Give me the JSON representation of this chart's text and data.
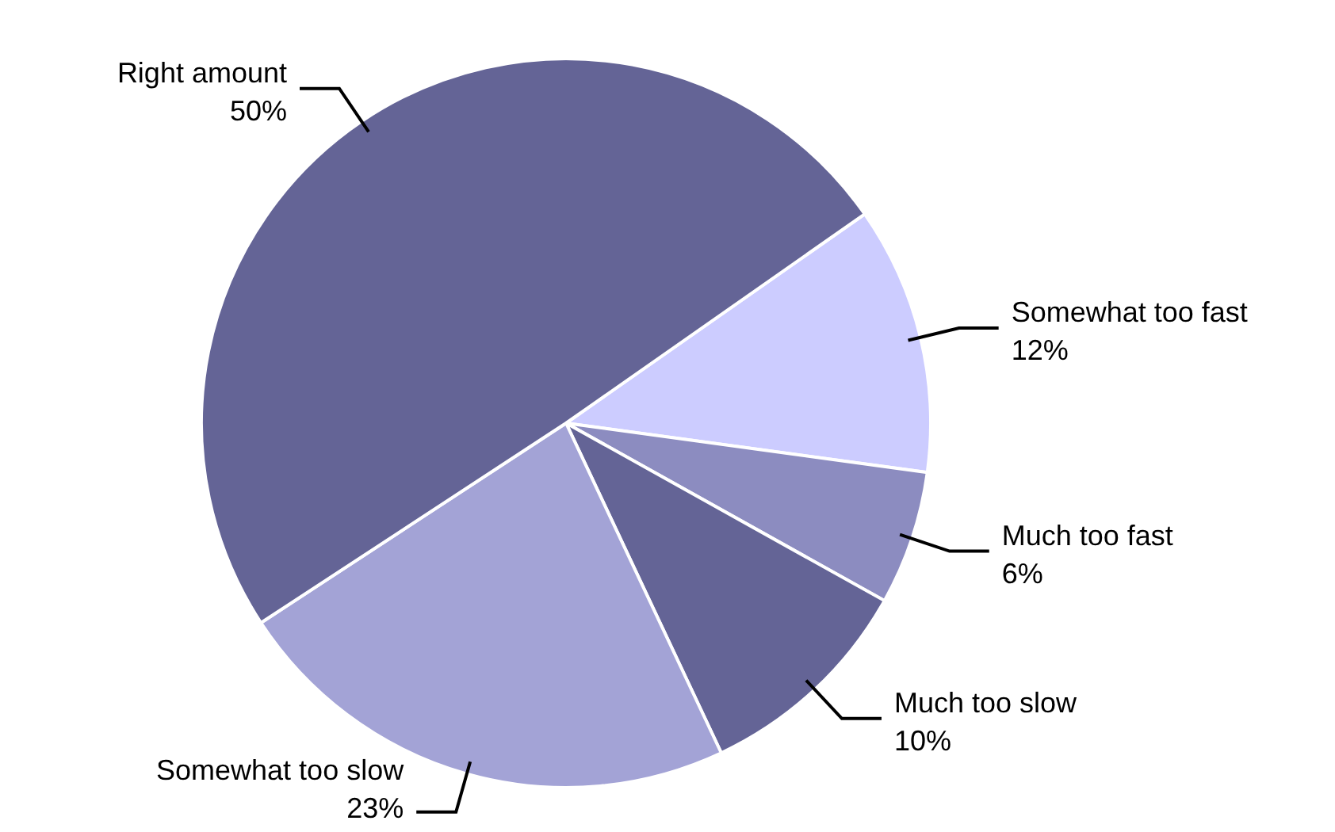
{
  "chart_data": {
    "type": "pie",
    "categories": [
      "Somewhat too fast",
      "Much too fast",
      "Much too slow",
      "Somewhat too slow",
      "Right amount"
    ],
    "values": [
      12,
      6,
      10,
      23,
      50
    ],
    "value_labels": [
      "12%",
      "6%",
      "10%",
      "23%",
      "50%"
    ],
    "colors": [
      "#ccccff",
      "#8c8cc0",
      "#646496",
      "#a3a3d6",
      "#646496"
    ]
  }
}
